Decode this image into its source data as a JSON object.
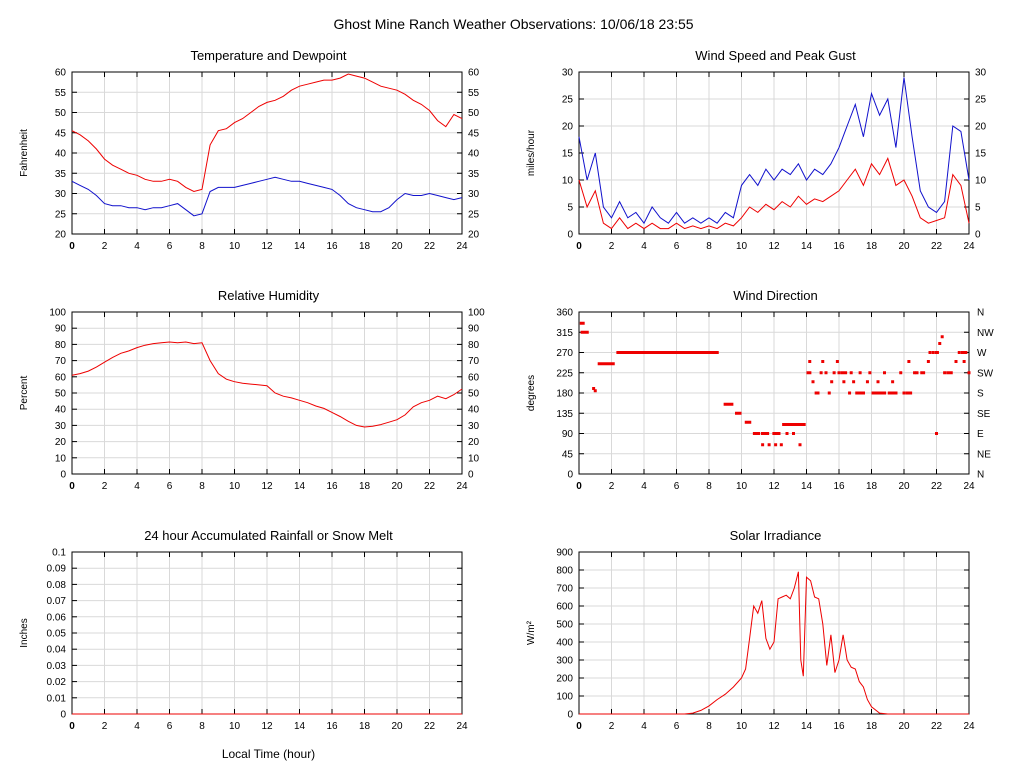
{
  "page_title": "Ghost Mine Ranch Weather Observations: 10/06/18 23:55",
  "x_axis": {
    "label": "Local Time (hour)",
    "min": 0,
    "max": 24,
    "tick_step": 2
  },
  "colors": {
    "red": "#ee0000",
    "blue": "#1111cc",
    "grid": "#d9d9d9",
    "frame": "#000000",
    "background": "#ffffff"
  },
  "chart_data": [
    {
      "id": "temperature_dewpoint",
      "type": "line",
      "title": "Temperature and Dewpoint",
      "ylabel": "Fahrenheit",
      "ylim": [
        20,
        60
      ],
      "ytick_step": 5,
      "mirror_y": true,
      "grid": true,
      "series": [
        {
          "name": "Temperature",
          "color": "#ee0000",
          "x_start": 0,
          "x_step": 0.5,
          "y": [
            45.5,
            44.5,
            43,
            41,
            38.5,
            37,
            36,
            35,
            34.5,
            33.5,
            33,
            33,
            33.5,
            33,
            31.5,
            30.5,
            31,
            42,
            45.5,
            46,
            47.5,
            48.5,
            50,
            51.5,
            52.5,
            53,
            54,
            55.5,
            56.5,
            57,
            57.5,
            58,
            58,
            58.5,
            59.5,
            59,
            58.5,
            57.5,
            56.5,
            56,
            55.5,
            54.5,
            53,
            52,
            50.5,
            48,
            46.5,
            49.5,
            48.5
          ]
        },
        {
          "name": "Dewpoint",
          "color": "#1111cc",
          "x_start": 0,
          "x_step": 0.5,
          "y": [
            33,
            32,
            31,
            29.5,
            27.5,
            27,
            27,
            26.5,
            26.5,
            26,
            26.5,
            26.5,
            27,
            27.5,
            26,
            24.5,
            25,
            30.5,
            31.5,
            31.5,
            31.5,
            32,
            32.5,
            33,
            33.5,
            34,
            33.5,
            33,
            33,
            32.5,
            32,
            31.5,
            31,
            29.5,
            27.5,
            26.5,
            26,
            25.5,
            25.5,
            26.5,
            28.5,
            30,
            29.5,
            29.5,
            30,
            29.5,
            29,
            28.5,
            29
          ]
        }
      ]
    },
    {
      "id": "wind_speed_gust",
      "type": "line",
      "title": "Wind Speed and Peak Gust",
      "ylabel": "miles/hour",
      "ylim": [
        0,
        30
      ],
      "ytick_step": 5,
      "mirror_y": true,
      "grid": true,
      "series": [
        {
          "name": "Peak Gust",
          "color": "#1111cc",
          "x_start": 0,
          "x_step": 0.5,
          "y": [
            18,
            10,
            15,
            5,
            3,
            6,
            3,
            4,
            2,
            5,
            3,
            2,
            4,
            2,
            3,
            2,
            3,
            2,
            4,
            3,
            9,
            11,
            9,
            12,
            10,
            12,
            11,
            13,
            10,
            12,
            11,
            13,
            16,
            20,
            24,
            18,
            26,
            22,
            25,
            16,
            29,
            18,
            8,
            5,
            4,
            6,
            20,
            19,
            10
          ]
        },
        {
          "name": "Wind Speed",
          "color": "#ee0000",
          "x_start": 0,
          "x_step": 0.5,
          "y": [
            10,
            5,
            8,
            2,
            1,
            3,
            1,
            2,
            1,
            2,
            1,
            1,
            2,
            1,
            1.5,
            1,
            1.5,
            1,
            2,
            1.5,
            3,
            5,
            4,
            5.5,
            4.5,
            6,
            5,
            7,
            5.5,
            6.5,
            6,
            7,
            8,
            10,
            12,
            9,
            13,
            11,
            14,
            9,
            10,
            7,
            3,
            2,
            2.5,
            3,
            11,
            9,
            2
          ]
        }
      ]
    },
    {
      "id": "relative_humidity",
      "type": "line",
      "title": "Relative Humidity",
      "ylabel": "Percent",
      "ylim": [
        0,
        100
      ],
      "ytick_step": 10,
      "mirror_y": true,
      "grid": true,
      "series": [
        {
          "name": "Relative Humidity",
          "color": "#ee0000",
          "x_start": 0,
          "x_step": 0.5,
          "y": [
            61,
            62,
            63.5,
            66,
            69,
            72,
            74.5,
            76,
            78,
            79.5,
            80.5,
            81,
            81.5,
            81,
            81.5,
            80.5,
            81,
            70,
            62,
            58.5,
            57,
            56,
            55.5,
            55,
            54.5,
            50,
            48,
            47,
            45.5,
            44,
            42,
            40.5,
            38,
            35.5,
            32.5,
            30,
            29,
            29.5,
            30.5,
            32,
            33.5,
            36.5,
            41.5,
            44,
            45.5,
            48,
            46.5,
            49,
            52.5
          ]
        }
      ]
    },
    {
      "id": "wind_direction",
      "type": "scatter",
      "title": "Wind Direction",
      "ylabel": "degrees",
      "ylim": [
        0,
        360
      ],
      "ytick_step": 45,
      "right_axis_labels": [
        "N",
        "NE",
        "E",
        "SE",
        "S",
        "SW",
        "W",
        "NW",
        "N"
      ],
      "grid": true,
      "series": [
        {
          "name": "Wind Direction",
          "color": "#ee0000",
          "segments": [
            [
              0.05,
              0.35,
              335
            ],
            [
              0.1,
              0.6,
              315
            ],
            [
              1.15,
              2.2,
              245
            ],
            [
              2.3,
              8.6,
              270
            ],
            [
              8.9,
              9.5,
              155
            ],
            [
              9.6,
              10.0,
              135
            ],
            [
              10.2,
              10.6,
              115
            ],
            [
              10.7,
              11.15,
              90
            ],
            [
              11.2,
              11.7,
              90
            ],
            [
              11.9,
              12.4,
              90
            ],
            [
              12.5,
              13.95,
              110
            ],
            [
              14.0,
              14.3,
              225
            ],
            [
              14.5,
              14.8,
              180
            ],
            [
              16.1,
              16.5,
              225
            ],
            [
              17.0,
              17.6,
              180
            ],
            [
              18.0,
              18.9,
              180
            ],
            [
              19.0,
              19.6,
              180
            ],
            [
              20.1,
              20.5,
              180
            ],
            [
              21.0,
              21.3,
              225
            ],
            [
              21.9,
              22.15,
              270
            ],
            [
              22.6,
              23.0,
              225
            ],
            [
              23.5,
              23.9,
              270
            ]
          ],
          "points": [
            [
              0.9,
              190
            ],
            [
              1.0,
              185
            ],
            [
              11.3,
              65
            ],
            [
              11.7,
              65
            ],
            [
              12.1,
              65
            ],
            [
              12.45,
              65
            ],
            [
              12.8,
              90
            ],
            [
              13.2,
              90
            ],
            [
              13.6,
              65
            ],
            [
              14.2,
              250
            ],
            [
              14.4,
              205
            ],
            [
              14.9,
              225
            ],
            [
              15.0,
              250
            ],
            [
              15.2,
              225
            ],
            [
              15.4,
              180
            ],
            [
              15.55,
              205
            ],
            [
              15.7,
              225
            ],
            [
              15.9,
              250
            ],
            [
              16.0,
              225
            ],
            [
              16.3,
              205
            ],
            [
              16.65,
              180
            ],
            [
              16.75,
              225
            ],
            [
              16.9,
              205
            ],
            [
              17.3,
              225
            ],
            [
              17.75,
              205
            ],
            [
              17.9,
              225
            ],
            [
              18.4,
              205
            ],
            [
              18.8,
              225
            ],
            [
              19.3,
              205
            ],
            [
              19.8,
              225
            ],
            [
              20.0,
              180
            ],
            [
              20.3,
              250
            ],
            [
              20.65,
              225
            ],
            [
              20.8,
              225
            ],
            [
              21.5,
              250
            ],
            [
              21.6,
              270
            ],
            [
              21.8,
              270
            ],
            [
              22.0,
              90
            ],
            [
              22.2,
              290
            ],
            [
              22.35,
              305
            ],
            [
              22.5,
              225
            ],
            [
              23.2,
              250
            ],
            [
              23.4,
              270
            ],
            [
              23.7,
              250
            ],
            [
              24.0,
              225
            ]
          ]
        }
      ]
    },
    {
      "id": "rainfall",
      "type": "line",
      "title": "24 hour Accumulated Rainfall or Snow Melt",
      "ylabel": "Inches",
      "xlabel": "Local Time (hour)",
      "ylim": [
        0,
        0.1
      ],
      "ytick_step": 0.01,
      "mirror_y": false,
      "grid": true,
      "series": [
        {
          "name": "Accumulated Rainfall",
          "color": "#ee0000",
          "x": [
            0,
            24
          ],
          "y": [
            0,
            0
          ]
        }
      ]
    },
    {
      "id": "solar_irradiance",
      "type": "line",
      "title": "Solar Irradiance",
      "ylabel": "W/m²",
      "ylim": [
        0,
        900
      ],
      "ytick_step": 100,
      "mirror_y": false,
      "grid": true,
      "series": [
        {
          "name": "Solar Irradiance",
          "color": "#ee0000",
          "x": [
            0,
            6.5,
            7,
            7.5,
            8,
            8.5,
            9,
            9.5,
            10,
            10.25,
            10.5,
            10.75,
            11,
            11.25,
            11.5,
            11.75,
            12,
            12.25,
            12.5,
            12.75,
            13,
            13.25,
            13.5,
            13.65,
            13.8,
            14,
            14.25,
            14.5,
            14.75,
            15,
            15.25,
            15.5,
            15.75,
            16,
            16.25,
            16.5,
            16.75,
            17,
            17.25,
            17.5,
            17.75,
            18,
            18.5,
            19,
            24
          ],
          "y": [
            0,
            0,
            5,
            20,
            45,
            80,
            110,
            150,
            200,
            250,
            420,
            600,
            560,
            630,
            420,
            360,
            400,
            640,
            650,
            660,
            640,
            700,
            790,
            300,
            210,
            760,
            740,
            650,
            640,
            500,
            270,
            440,
            230,
            300,
            440,
            300,
            260,
            250,
            180,
            150,
            80,
            40,
            5,
            0,
            0
          ]
        }
      ]
    }
  ]
}
